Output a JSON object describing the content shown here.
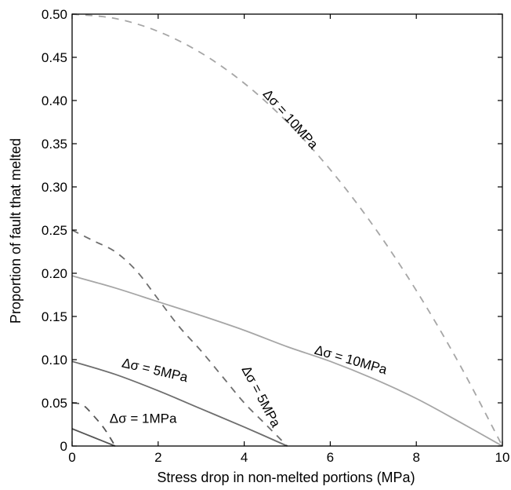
{
  "chart_data": {
    "type": "line",
    "title": "",
    "xlabel": "Stress drop in non-melted portions (MPa)",
    "ylabel": "Proportion of fault that melted",
    "xlim": [
      0,
      10
    ],
    "ylim": [
      0,
      0.5
    ],
    "grid": false,
    "x_ticks": [
      0,
      2,
      4,
      6,
      8,
      10
    ],
    "x_tick_labels": [
      "0",
      "2",
      "4",
      "6",
      "8",
      "10"
    ],
    "y_ticks": [
      0,
      0.05,
      0.1,
      0.15,
      0.2,
      0.25,
      0.3,
      0.35,
      0.4,
      0.45,
      0.5
    ],
    "y_tick_labels": [
      "0",
      "0.05",
      "0.10",
      "0.15",
      "0.20",
      "0.25",
      "0.30",
      "0.35",
      "0.40",
      "0.45",
      "0.50"
    ],
    "series": [
      {
        "style": "dashed",
        "color": "#a6a6a6",
        "x": [
          0,
          1,
          2,
          3,
          4,
          5,
          6,
          7,
          8,
          9,
          10
        ],
        "y": [
          0.5,
          0.495,
          0.48,
          0.455,
          0.42,
          0.375,
          0.32,
          0.255,
          0.18,
          0.095,
          0
        ]
      },
      {
        "style": "dashed",
        "color": "#6e6e6e",
        "x": [
          0,
          0.5,
          1,
          1.5,
          2,
          2.5,
          3,
          3.5,
          4,
          4.5,
          5
        ],
        "y": [
          0.25,
          0.2375,
          0.225,
          0.2025,
          0.17,
          0.1375,
          0.11,
          0.08,
          0.05,
          0.025,
          0
        ]
      },
      {
        "style": "dashed",
        "color": "#555555",
        "x": [
          0,
          0.25,
          0.5,
          0.75,
          1
        ],
        "y": [
          0.05,
          0.0475,
          0.035,
          0.02,
          0
        ]
      },
      {
        "style": "solid",
        "color": "#a6a6a6",
        "x": [
          0,
          1,
          2,
          3,
          4,
          5,
          6,
          7,
          8,
          9,
          10
        ],
        "y": [
          0.197,
          0.183,
          0.167,
          0.151,
          0.134,
          0.115,
          0.098,
          0.078,
          0.055,
          0.028,
          0
        ]
      },
      {
        "style": "solid",
        "color": "#6e6e6e",
        "x": [
          0,
          1,
          2,
          3,
          4,
          5
        ],
        "y": [
          0.098,
          0.083,
          0.064,
          0.043,
          0.022,
          0
        ]
      },
      {
        "style": "solid",
        "color": "#555555",
        "x": [
          0,
          0.5,
          1
        ],
        "y": [
          0.02,
          0.01,
          0
        ]
      }
    ],
    "annotations": [
      {
        "text": "Δσ = 10MPa",
        "x": 5.0,
        "y": 0.375,
        "rotate": 48
      },
      {
        "text": "Δσ = 10MPa",
        "x": 6.45,
        "y": 0.095,
        "rotate": 16
      },
      {
        "text": "Δσ = 5MPa",
        "x": 1.9,
        "y": 0.083,
        "rotate": 13
      },
      {
        "text": "Δσ = 5MPa",
        "x": 4.3,
        "y": 0.055,
        "rotate": 62
      },
      {
        "text": "Δσ = 1MPa",
        "x": 1.65,
        "y": 0.027,
        "rotate": 0
      }
    ]
  }
}
